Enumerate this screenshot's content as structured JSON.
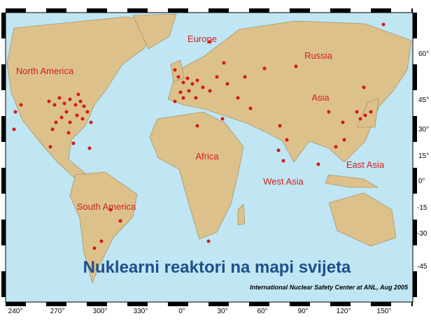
{
  "title": "Nuklearni reaktori na mapi svijeta",
  "credit": "International Nuclear Safety Center at ANL, Aug 2005",
  "regions": [
    "North America",
    "Europe",
    "Russia",
    "Asia",
    "Africa",
    "West Asia",
    "East Asia",
    "South America"
  ],
  "lat_labels": [
    "60°",
    "45°",
    "30°",
    "15°",
    "0°",
    "-15",
    "-30",
    "-45"
  ],
  "lon_labels": [
    "240°",
    "270°",
    "300°",
    "330°",
    "0°",
    "30°",
    "60°",
    "90°",
    "120°",
    "150°"
  ]
}
